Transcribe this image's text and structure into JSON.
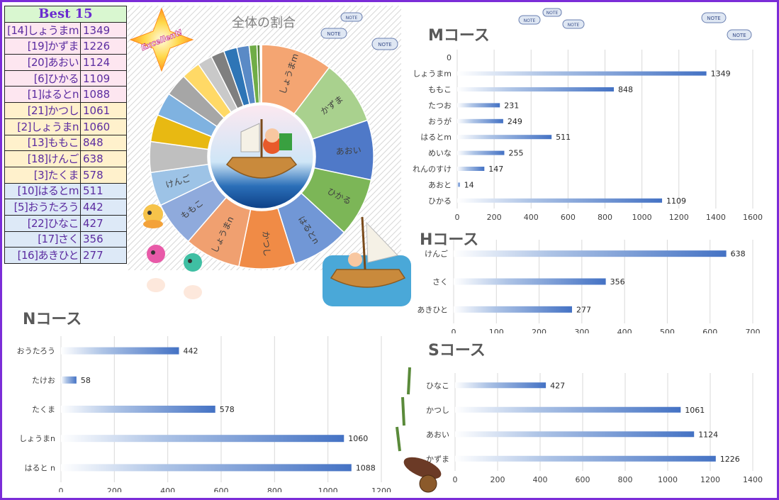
{
  "best_table": {
    "title": "Best 15",
    "rows": [
      {
        "name": "[14]しょうまm",
        "score": "1349",
        "group": "pink"
      },
      {
        "name": "[19]かずま",
        "score": "1226",
        "group": "pink"
      },
      {
        "name": "[20]あおい",
        "score": "1124",
        "group": "pink"
      },
      {
        "name": "[6]ひかる",
        "score": "1109",
        "group": "pink"
      },
      {
        "name": "[1]はるとn",
        "score": "1088",
        "group": "pink"
      },
      {
        "name": "[21]かつし",
        "score": "1061",
        "group": "yel"
      },
      {
        "name": "[2]しょうまn",
        "score": "1060",
        "group": "yel"
      },
      {
        "name": "[13]ももこ",
        "score": "848",
        "group": "yel"
      },
      {
        "name": "[18]けんご",
        "score": "638",
        "group": "yel"
      },
      {
        "name": "[3]たくま",
        "score": "578",
        "group": "yel"
      },
      {
        "name": "[10]はるとm",
        "score": "511",
        "group": "blu"
      },
      {
        "name": "[5]おうたろう",
        "score": "442",
        "group": "blu"
      },
      {
        "name": "[22]ひなこ",
        "score": "427",
        "group": "blu"
      },
      {
        "name": "[17]さく",
        "score": "356",
        "group": "blu"
      },
      {
        "name": "[16]あきひと",
        "score": "277",
        "group": "blu"
      }
    ]
  },
  "badge": "Excellent!",
  "note_label": "NOTE",
  "chart_data": [
    {
      "type": "pie",
      "title": "全体の割合",
      "labels": [
        "しょうまm",
        "かずま",
        "あおい",
        "ひかる",
        "はるとn",
        "かつし",
        "しょうまn",
        "ももこ",
        "けんご",
        "",
        "",
        "",
        "",
        "",
        "",
        "",
        "",
        "",
        "",
        "",
        "",
        ""
      ],
      "values": [
        1349,
        1226,
        1124,
        1109,
        1088,
        1061,
        1060,
        848,
        638,
        578,
        511,
        442,
        427,
        356,
        277,
        255,
        249,
        231,
        147,
        58,
        14,
        14
      ],
      "colors": [
        "#f4a572",
        "#a9d18e",
        "#4f79c8",
        "#7cb657",
        "#7197d6",
        "#f08b46",
        "#f0a070",
        "#8faadc",
        "#9dc3e6",
        "#bfbfbf",
        "#e8b912",
        "#7fb2e0",
        "#a6a6a6",
        "#ffd966",
        "#c9c9c9",
        "#7f7f7f",
        "#2e75b6",
        "#5a8ac6",
        "#70ad47",
        "#548235",
        "#c55a11",
        "#ffc000"
      ]
    },
    {
      "type": "bar",
      "title": "Mコース",
      "categories": [
        "0",
        "しょうまm",
        "ももこ",
        "たつお",
        "おうが",
        "はるとm",
        "めいな",
        "れんのすけ",
        "あおと",
        "ひかる"
      ],
      "values": [
        0,
        1349,
        848,
        231,
        249,
        511,
        255,
        147,
        14,
        1109
      ],
      "value_labels": [
        "",
        "1349",
        "848",
        "231",
        "249",
        "511",
        "255",
        "147",
        "14",
        "1109"
      ],
      "xlim": [
        0,
        1600
      ],
      "ticks": [
        "0",
        "200",
        "400",
        "600",
        "800",
        "1000",
        "1200",
        "1400",
        "1600"
      ]
    },
    {
      "type": "bar",
      "title": "Hコース",
      "categories": [
        "けんご",
        "さく",
        "あきひと"
      ],
      "values": [
        638,
        356,
        277
      ],
      "xlim": [
        0,
        700
      ],
      "ticks": [
        "0",
        "100",
        "200",
        "300",
        "400",
        "500",
        "600",
        "700"
      ]
    },
    {
      "type": "bar",
      "title": "Nコース",
      "categories": [
        "おうたろう",
        "たけお",
        "たくま",
        "しょうまn",
        "はると n"
      ],
      "values": [
        442,
        58,
        578,
        1060,
        1088
      ],
      "xlim": [
        0,
        1200
      ],
      "ticks": [
        "0",
        "200",
        "400",
        "600",
        "800",
        "1000",
        "1200"
      ]
    },
    {
      "type": "bar",
      "title": "Sコース",
      "categories": [
        "ひなこ",
        "かつし",
        "あおい",
        "かずま"
      ],
      "values": [
        427,
        1061,
        1124,
        1226
      ],
      "xlim": [
        0,
        1400
      ],
      "ticks": [
        "0",
        "200",
        "400",
        "600",
        "800",
        "1000",
        "1200",
        "1400"
      ]
    }
  ]
}
